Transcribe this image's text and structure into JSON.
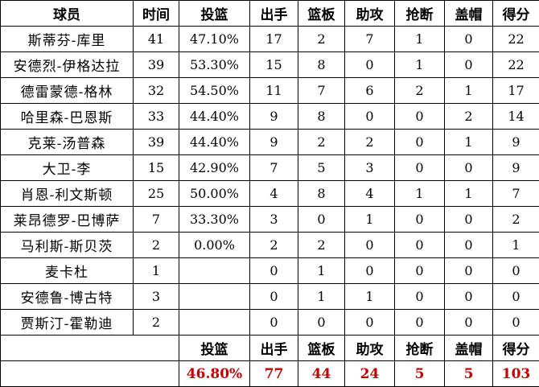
{
  "table": {
    "header": [
      "球员",
      "时间",
      "投篮",
      "出手",
      "篮板",
      "助攻",
      "抢断",
      "盖帽",
      "得分"
    ],
    "rows": [
      [
        "斯蒂芬-库里",
        41,
        "47.10%",
        17,
        2,
        7,
        1,
        0,
        22
      ],
      [
        "安德烈-伊格达拉",
        39,
        "53.30%",
        15,
        8,
        0,
        1,
        0,
        22
      ],
      [
        "德雷蒙德-格林",
        32,
        "54.50%",
        11,
        7,
        6,
        2,
        1,
        17
      ],
      [
        "哈里森-巴恩斯",
        33,
        "44.40%",
        9,
        8,
        0,
        0,
        2,
        14
      ],
      [
        "克莱-汤普森",
        39,
        "44.40%",
        9,
        2,
        2,
        0,
        1,
        9
      ],
      [
        "大卫-李",
        15,
        "42.90%",
        7,
        5,
        3,
        0,
        0,
        9
      ],
      [
        "肖恩-利文斯顿",
        25,
        "50.00%",
        4,
        8,
        4,
        1,
        1,
        7
      ],
      [
        "莱昂德罗-巴博萨",
        7,
        "33.30%",
        3,
        0,
        1,
        0,
        0,
        2
      ],
      [
        "马利斯-斯贝茨",
        2,
        "0.00%",
        2,
        2,
        0,
        0,
        0,
        1
      ],
      [
        "麦卡杜",
        1,
        null,
        0,
        1,
        0,
        0,
        0,
        0
      ],
      [
        "安德鲁-博古特",
        3,
        null,
        0,
        1,
        1,
        0,
        0,
        0
      ],
      [
        "贾斯汀-霍勒迪",
        2,
        null,
        0,
        0,
        0,
        0,
        0,
        0
      ]
    ],
    "summary_header": [
      "投篮",
      "出手",
      "篮板",
      "助攻",
      "抢断",
      "盖帽",
      "得分"
    ],
    "totals": [
      "46.80%",
      77,
      44,
      24,
      5,
      5,
      103
    ]
  }
}
